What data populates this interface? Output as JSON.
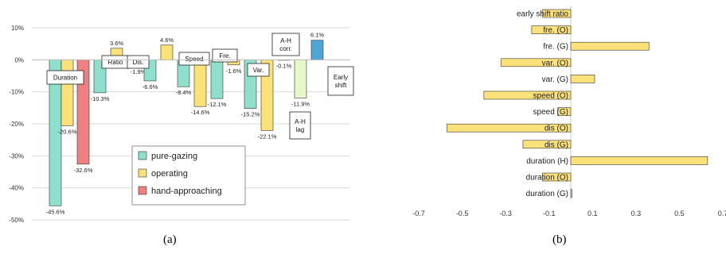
{
  "colors": {
    "pure_gazing": "#8ee0cc",
    "operating": "#fbe17a",
    "hand_approaching": "#f08080",
    "early_shift": "#4fa6d6",
    "ah_lag": "#e6f7c9",
    "bar_b": "#fbe17a",
    "stroke": "#333333",
    "grid": "#d9d9d9"
  },
  "captions": {
    "a": "(a)",
    "b": "(b)"
  },
  "chart_data": [
    {
      "type": "bar",
      "ylim": [
        -50,
        10
      ],
      "yticks": [
        10,
        0,
        -10,
        -20,
        -30,
        -40,
        -50
      ],
      "ytick_labels": [
        "10%",
        "0%",
        "-10%",
        "-20%",
        "-30%",
        "-40%",
        "-50%"
      ],
      "legend": {
        "placement": "lower-middle",
        "entries": [
          {
            "name": "pure-gazing",
            "color_key": "pure_gazing"
          },
          {
            "name": "operating",
            "color_key": "operating"
          },
          {
            "name": "hand-approaching",
            "color_key": "hand_approaching"
          }
        ]
      },
      "groups": [
        {
          "label": "Duration",
          "bars": [
            {
              "series": "pure_gazing",
              "value": -45.6,
              "label": "-45.6%"
            },
            {
              "series": "operating",
              "value": -20.6,
              "label": "-20.6%"
            },
            {
              "series": "hand_approaching",
              "value": -32.6,
              "label": "-32.6%"
            }
          ]
        },
        {
          "label": "Ratio",
          "bars": [
            {
              "series": "pure_gazing",
              "value": -10.3,
              "label": "-10.3%"
            },
            {
              "series": "operating",
              "value": 3.6,
              "label": "3.6%"
            },
            {
              "series": "hand_approaching",
              "value": -1.9,
              "label": "-1.9%"
            }
          ]
        },
        {
          "label": "Dis.",
          "bars": [
            {
              "series": "pure_gazing",
              "value": -6.6,
              "label": "-6.6%"
            },
            {
              "series": "operating",
              "value": 4.6,
              "label": "4.6%"
            }
          ]
        },
        {
          "label": "Speed",
          "bars": [
            {
              "series": "pure_gazing",
              "value": -8.4,
              "label": "-8.4%"
            },
            {
              "series": "operating",
              "value": -14.6,
              "label": "-14.6%"
            }
          ]
        },
        {
          "label": "Fre.",
          "bars": [
            {
              "series": "pure_gazing",
              "value": -12.1,
              "label": "-12.1%"
            },
            {
              "series": "operating",
              "value": -1.6,
              "label": "-1.6%"
            }
          ]
        },
        {
          "label": "Var.",
          "bars": [
            {
              "series": "pure_gazing",
              "value": -15.2,
              "label": "-15.2%"
            },
            {
              "series": "operating",
              "value": -22.1,
              "label": "-22.1%"
            }
          ]
        },
        {
          "label": "A-H corr.",
          "bars": [
            {
              "series": "hand_approaching",
              "value": -0.1,
              "label": "-0.1%"
            }
          ]
        },
        {
          "label": "A-H lag",
          "bars": [
            {
              "series": "ah_lag",
              "value": -11.9,
              "label": "-11.9%"
            }
          ]
        },
        {
          "label": "Early shift",
          "bars": [
            {
              "series": "early_shift",
              "value": 6.1,
              "label": "6.1%"
            }
          ]
        }
      ]
    },
    {
      "type": "bar",
      "orientation": "horizontal",
      "xlim": [
        -0.7,
        0.7
      ],
      "xticks": [
        -0.7,
        -0.5,
        -0.3,
        -0.1,
        0.1,
        0.3,
        0.5,
        0.7
      ],
      "xtick_labels": [
        "-0.7",
        "-0.5",
        "-0.3",
        "-0.1",
        "0.1",
        "0.3",
        "0.5",
        "0.7"
      ],
      "categories": [
        "early shift ratio",
        "fre. (O)",
        "fre. (G)",
        "var. (O)",
        "var. (G)",
        "speed (O)",
        "speed (G)",
        "dis (O)",
        "dis (G)",
        "duration (H)",
        "duration (O)",
        "duration (G)"
      ],
      "values": [
        -0.13,
        -0.18,
        0.36,
        -0.32,
        0.11,
        -0.4,
        -0.06,
        -0.57,
        -0.22,
        0.63,
        -0.13,
        0.005
      ]
    }
  ]
}
